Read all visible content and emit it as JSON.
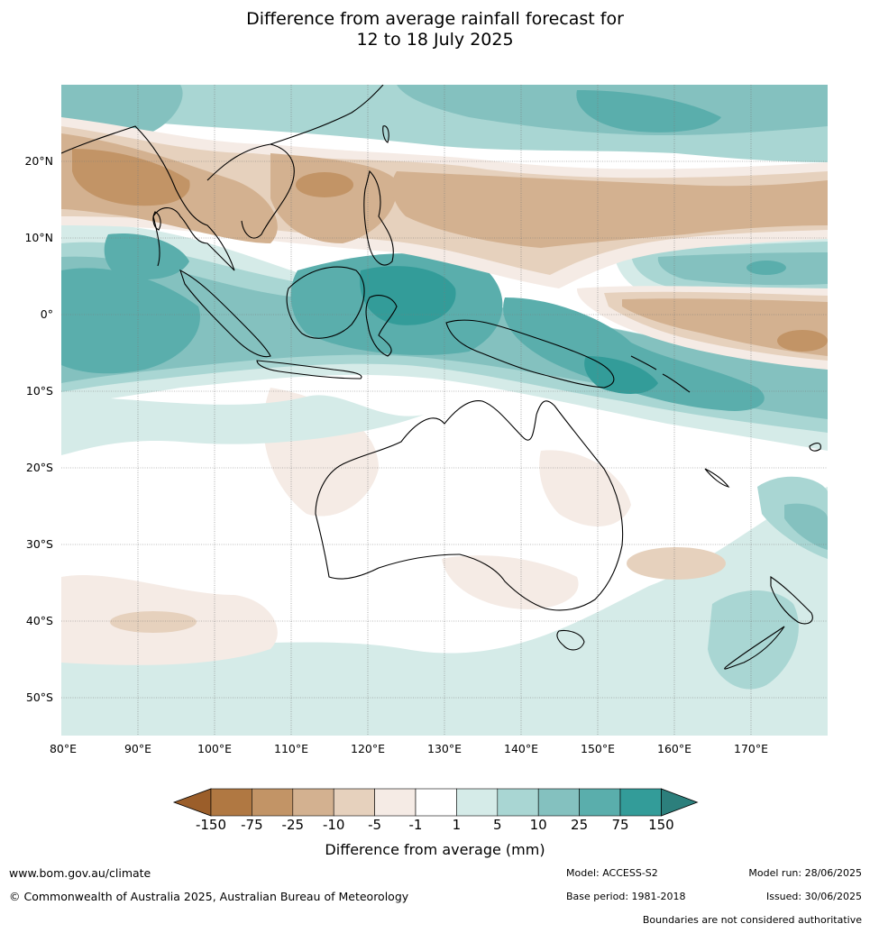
{
  "title": {
    "line1": "Difference from average rainfall forecast for",
    "line2": "12 to 18 July 2025"
  },
  "map": {
    "lon_labels": [
      "80°E",
      "90°E",
      "100°E",
      "110°E",
      "120°E",
      "130°E",
      "140°E",
      "150°E",
      "160°E",
      "170°E"
    ],
    "lat_labels": [
      "20°N",
      "10°N",
      "0°",
      "10°S",
      "20°S",
      "30°S",
      "40°S",
      "50°S"
    ],
    "lon_range": [
      80,
      180
    ],
    "lat_range": [
      -55,
      30
    ],
    "gridlines": true
  },
  "legend": {
    "title": "Difference from average (mm)",
    "ticks": [
      "-150",
      "-75",
      "-25",
      "-10",
      "-5",
      "-1",
      "1",
      "5",
      "10",
      "25",
      "75",
      "150"
    ],
    "colors": [
      "#9b5e2a",
      "#b07842",
      "#c29466",
      "#d3b190",
      "#e6d1bd",
      "#f5ebe5",
      "#ffffff",
      "#d5ebe8",
      "#a9d6d3",
      "#84c1bf",
      "#5aaeac",
      "#339c99",
      "#2c7f7c"
    ],
    "extend": "both"
  },
  "footer": {
    "website": "www.bom.gov.au/climate",
    "copyright": "© Commonwealth of Australia 2025, Australian Bureau of Meteorology",
    "model": "Model: ACCESS-S2",
    "model_run": "Model run: 28/06/2025",
    "base_period": "Base period: 1981-2018",
    "issued": "Issued: 30/06/2025",
    "disclaimer": "Boundaries are not considered authoritative"
  }
}
